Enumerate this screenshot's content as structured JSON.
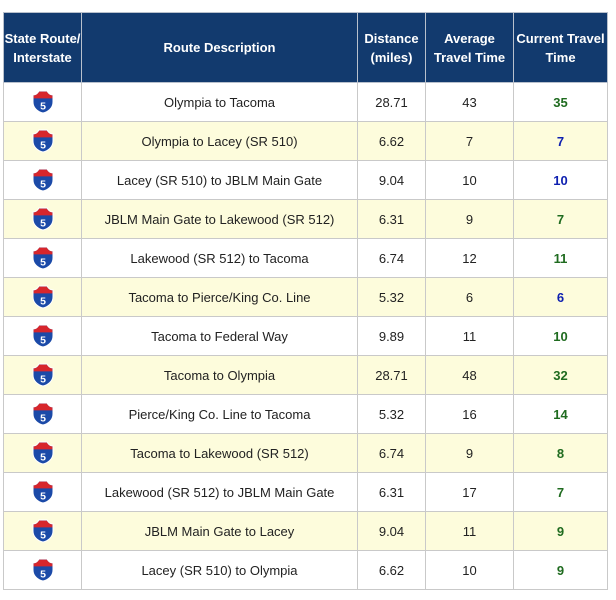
{
  "headers": {
    "route": "State Route/ Interstate",
    "description": "Route Description",
    "distance": "Distance (miles)",
    "average": "Average Travel Time",
    "current": "Current Travel Time"
  },
  "shield_label": "5",
  "colors": {
    "header_bg": "#123a6e",
    "alt_row_bg": "#fdfcdc",
    "time_green": "#1f6b1f",
    "time_blue": "#0d1fb0",
    "shield_blue": "#1b4aa8",
    "shield_red": "#d7262c"
  },
  "rows": [
    {
      "description": "Olympia to Tacoma",
      "distance": "28.71",
      "average": "43",
      "current": "35",
      "status": "green"
    },
    {
      "description": "Olympia to Lacey (SR 510)",
      "distance": "6.62",
      "average": "7",
      "current": "7",
      "status": "blue"
    },
    {
      "description": "Lacey (SR 510) to JBLM Main Gate",
      "distance": "9.04",
      "average": "10",
      "current": "10",
      "status": "blue"
    },
    {
      "description": "JBLM Main Gate to Lakewood (SR 512)",
      "distance": "6.31",
      "average": "9",
      "current": "7",
      "status": "green"
    },
    {
      "description": "Lakewood (SR 512) to Tacoma",
      "distance": "6.74",
      "average": "12",
      "current": "11",
      "status": "green"
    },
    {
      "description": "Tacoma to Pierce/King Co. Line",
      "distance": "5.32",
      "average": "6",
      "current": "6",
      "status": "blue"
    },
    {
      "description": "Tacoma to Federal Way",
      "distance": "9.89",
      "average": "11",
      "current": "10",
      "status": "green"
    },
    {
      "description": "Tacoma to Olympia",
      "distance": "28.71",
      "average": "48",
      "current": "32",
      "status": "green"
    },
    {
      "description": "Pierce/King Co. Line to Tacoma",
      "distance": "5.32",
      "average": "16",
      "current": "14",
      "status": "green"
    },
    {
      "description": "Tacoma to Lakewood (SR 512)",
      "distance": "6.74",
      "average": "9",
      "current": "8",
      "status": "green"
    },
    {
      "description": "Lakewood (SR 512) to JBLM Main Gate",
      "distance": "6.31",
      "average": "17",
      "current": "7",
      "status": "green"
    },
    {
      "description": "JBLM Main Gate to Lacey",
      "distance": "9.04",
      "average": "11",
      "current": "9",
      "status": "green"
    },
    {
      "description": "Lacey (SR 510) to Olympia",
      "distance": "6.62",
      "average": "10",
      "current": "9",
      "status": "green"
    }
  ]
}
